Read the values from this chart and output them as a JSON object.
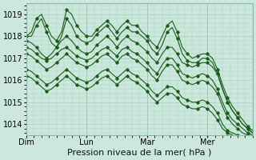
{
  "bg_color": "#cce8dc",
  "grid_color": "#aacfbf",
  "line_color": "#1a5c1a",
  "marker_color": "#1a5c1a",
  "xlabel": "Pression niveau de la mer( hPa )",
  "xlabel_fontsize": 8,
  "ylim": [
    1013.5,
    1019.5
  ],
  "yticks": [
    1014,
    1015,
    1016,
    1017,
    1018,
    1019
  ],
  "day_labels": [
    "Dim",
    "Lun",
    "Mar",
    "Mer"
  ],
  "day_positions": [
    0,
    24,
    48,
    72
  ],
  "total_hours": 90,
  "series": [
    {
      "x": [
        0,
        2,
        4,
        6,
        8,
        10,
        12,
        14,
        16,
        18,
        20,
        22,
        24,
        26,
        28,
        30,
        32,
        34,
        36,
        38,
        40,
        42,
        44,
        46,
        48,
        50,
        52,
        54,
        56,
        58,
        60,
        62,
        64,
        66,
        68,
        70,
        72,
        74,
        76,
        78,
        80,
        82,
        84,
        86,
        88,
        90
      ],
      "y": [
        1018.0,
        1018.2,
        1018.8,
        1019.0,
        1018.5,
        1018.0,
        1017.8,
        1018.2,
        1019.2,
        1019.0,
        1018.5,
        1018.2,
        1018.0,
        1018.0,
        1018.3,
        1018.5,
        1018.7,
        1018.5,
        1018.2,
        1018.5,
        1018.7,
        1018.5,
        1018.5,
        1018.2,
        1018.0,
        1017.7,
        1017.5,
        1018.0,
        1018.5,
        1018.7,
        1018.2,
        1017.5,
        1017.2,
        1017.0,
        1017.1,
        1017.2,
        1017.2,
        1017.0,
        1016.5,
        1015.8,
        1015.2,
        1014.8,
        1014.5,
        1014.2,
        1013.9,
        1013.7
      ]
    },
    {
      "x": [
        0,
        2,
        4,
        6,
        8,
        10,
        12,
        14,
        16,
        18,
        20,
        22,
        24,
        26,
        28,
        30,
        32,
        34,
        36,
        38,
        40,
        42,
        44,
        46,
        48,
        50,
        52,
        54,
        56,
        58,
        60,
        62,
        64,
        66,
        68,
        70,
        72,
        74,
        76,
        78,
        80,
        82,
        84,
        86,
        88,
        90
      ],
      "y": [
        1018.0,
        1018.0,
        1018.5,
        1018.8,
        1018.2,
        1017.7,
        1017.5,
        1018.0,
        1018.8,
        1018.5,
        1018.0,
        1017.8,
        1017.7,
        1017.8,
        1018.1,
        1018.3,
        1018.5,
        1018.2,
        1017.9,
        1018.2,
        1018.4,
        1018.2,
        1018.2,
        1018.0,
        1017.8,
        1017.4,
        1017.2,
        1017.6,
        1018.2,
        1018.4,
        1017.9,
        1017.2,
        1016.9,
        1016.8,
        1016.8,
        1017.0,
        1017.0,
        1016.8,
        1016.3,
        1015.6,
        1015.0,
        1014.6,
        1014.3,
        1014.0,
        1013.8,
        1013.6
      ]
    },
    {
      "x": [
        0,
        2,
        4,
        6,
        8,
        10,
        12,
        14,
        16,
        18,
        20,
        22,
        24,
        26,
        28,
        30,
        32,
        34,
        36,
        38,
        40,
        42,
        44,
        46,
        48,
        50,
        52,
        54,
        56,
        58,
        60,
        62,
        64,
        66,
        68,
        70,
        72,
        74,
        76,
        78,
        80,
        82,
        84,
        86,
        88,
        90
      ],
      "y": [
        1017.8,
        1017.7,
        1017.5,
        1017.2,
        1017.0,
        1017.2,
        1017.5,
        1017.8,
        1018.0,
        1017.8,
        1017.5,
        1017.3,
        1017.2,
        1017.3,
        1017.6,
        1017.8,
        1018.0,
        1017.8,
        1017.5,
        1017.8,
        1018.0,
        1017.8,
        1017.7,
        1017.5,
        1017.3,
        1017.0,
        1016.8,
        1017.2,
        1017.5,
        1017.5,
        1017.2,
        1016.8,
        1016.7,
        1016.6,
        1016.7,
        1016.8,
        1016.8,
        1016.6,
        1016.3,
        1015.6,
        1015.0,
        1014.6,
        1014.3,
        1014.0,
        1013.8,
        1013.6
      ]
    },
    {
      "x": [
        0,
        2,
        4,
        6,
        8,
        10,
        12,
        14,
        16,
        18,
        20,
        22,
        24,
        26,
        28,
        30,
        32,
        34,
        36,
        38,
        40,
        42,
        44,
        46,
        48,
        50,
        52,
        54,
        56,
        58,
        60,
        62,
        64,
        66,
        68,
        70,
        72,
        74,
        76,
        78,
        80,
        82,
        84,
        86,
        88,
        90
      ],
      "y": [
        1017.5,
        1017.4,
        1017.2,
        1017.0,
        1016.9,
        1017.0,
        1017.2,
        1017.4,
        1017.5,
        1017.3,
        1017.1,
        1017.0,
        1016.9,
        1017.0,
        1017.2,
        1017.4,
        1017.5,
        1017.3,
        1017.1,
        1017.4,
        1017.5,
        1017.3,
        1017.2,
        1017.0,
        1016.8,
        1016.5,
        1016.3,
        1016.7,
        1017.0,
        1017.0,
        1016.7,
        1016.3,
        1016.2,
        1016.1,
        1016.2,
        1016.3,
        1016.2,
        1016.0,
        1015.6,
        1015.0,
        1014.5,
        1014.2,
        1014.0,
        1013.8,
        1013.6,
        1013.5
      ]
    },
    {
      "x": [
        0,
        2,
        4,
        6,
        8,
        10,
        12,
        14,
        16,
        18,
        20,
        22,
        24,
        26,
        28,
        30,
        32,
        34,
        36,
        38,
        40,
        42,
        44,
        46,
        48,
        50,
        52,
        54,
        56,
        58,
        60,
        62,
        64,
        66,
        68,
        70,
        72,
        74,
        76,
        78,
        80,
        82,
        84,
        86,
        88,
        90
      ],
      "y": [
        1017.2,
        1017.1,
        1016.9,
        1016.7,
        1016.5,
        1016.6,
        1016.8,
        1017.0,
        1017.2,
        1017.0,
        1016.8,
        1016.7,
        1016.6,
        1016.7,
        1016.9,
        1017.1,
        1017.2,
        1017.0,
        1016.8,
        1017.1,
        1017.2,
        1017.0,
        1016.9,
        1016.7,
        1016.5,
        1016.2,
        1016.0,
        1016.4,
        1016.7,
        1016.7,
        1016.4,
        1016.0,
        1015.9,
        1015.8,
        1015.9,
        1016.0,
        1015.9,
        1015.7,
        1015.4,
        1014.8,
        1014.3,
        1014.0,
        1013.8,
        1013.6,
        1013.5,
        1013.4
      ]
    },
    {
      "x": [
        0,
        2,
        4,
        6,
        8,
        10,
        12,
        14,
        16,
        18,
        20,
        22,
        24,
        26,
        28,
        30,
        32,
        34,
        36,
        38,
        40,
        42,
        44,
        46,
        48,
        50,
        52,
        54,
        56,
        58,
        60,
        62,
        64,
        66,
        68,
        70,
        72,
        74,
        76,
        78,
        80,
        82,
        84,
        86,
        88,
        90
      ],
      "y": [
        1016.5,
        1016.4,
        1016.2,
        1016.0,
        1015.8,
        1015.9,
        1016.1,
        1016.3,
        1016.5,
        1016.3,
        1016.1,
        1016.0,
        1015.9,
        1016.0,
        1016.2,
        1016.4,
        1016.5,
        1016.3,
        1016.1,
        1016.3,
        1016.5,
        1016.3,
        1016.2,
        1016.0,
        1015.8,
        1015.5,
        1015.3,
        1015.5,
        1015.7,
        1015.7,
        1015.5,
        1015.2,
        1015.1,
        1015.0,
        1015.0,
        1015.1,
        1015.0,
        1014.8,
        1014.5,
        1014.0,
        1013.7,
        1013.6,
        1013.5,
        1013.4,
        1013.4,
        1013.3
      ]
    },
    {
      "x": [
        0,
        2,
        4,
        6,
        8,
        10,
        12,
        14,
        16,
        18,
        20,
        22,
        24,
        26,
        28,
        30,
        32,
        34,
        36,
        38,
        40,
        42,
        44,
        46,
        48,
        50,
        52,
        54,
        56,
        58,
        60,
        62,
        64,
        66,
        68,
        70,
        72,
        74,
        76,
        78,
        80,
        82,
        84,
        86,
        88,
        90
      ],
      "y": [
        1016.2,
        1016.1,
        1015.9,
        1015.7,
        1015.5,
        1015.6,
        1015.8,
        1016.0,
        1016.2,
        1016.0,
        1015.8,
        1015.7,
        1015.6,
        1015.7,
        1015.9,
        1016.1,
        1016.2,
        1016.0,
        1015.8,
        1016.0,
        1016.2,
        1016.0,
        1015.9,
        1015.7,
        1015.5,
        1015.2,
        1015.0,
        1015.2,
        1015.4,
        1015.4,
        1015.2,
        1014.9,
        1014.8,
        1014.7,
        1014.7,
        1014.8,
        1014.7,
        1014.5,
        1014.2,
        1013.8,
        1013.6,
        1013.5,
        1013.4,
        1013.4,
        1013.3,
        1013.3
      ]
    }
  ]
}
